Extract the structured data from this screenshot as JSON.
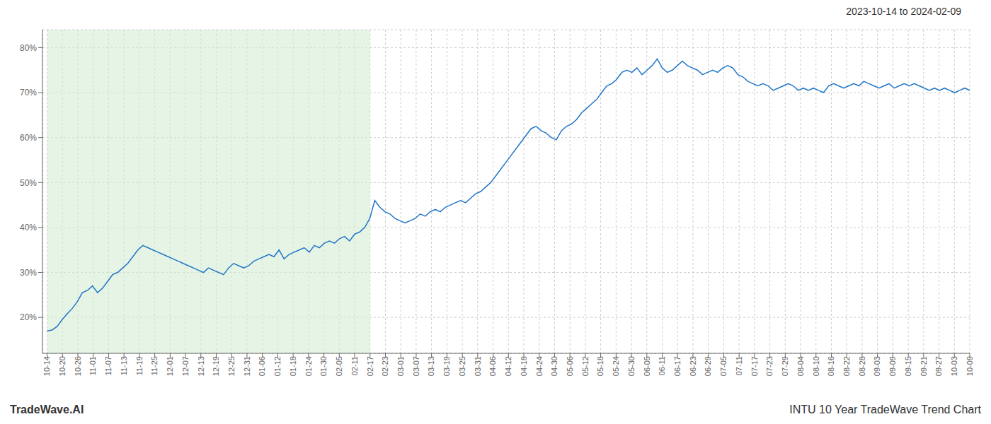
{
  "chart_data": {
    "type": "line",
    "title": "2023-10-14 to 2024-02-09",
    "annotations": [
      "TradeWave.AI",
      "INTU 10 Year TradeWave Trend Chart"
    ],
    "color": "#2176c7",
    "grid": true,
    "x": [
      0,
      1,
      2,
      3,
      4,
      5,
      6,
      7,
      8,
      9,
      10,
      11,
      12,
      13,
      14,
      15,
      16,
      17,
      18,
      19,
      20,
      21,
      22,
      23,
      24,
      25,
      26,
      27,
      28,
      29,
      30,
      31,
      32,
      33,
      34,
      35,
      36,
      37,
      38,
      39,
      40,
      41,
      42,
      43,
      44,
      45,
      46,
      47,
      48,
      49,
      50,
      51,
      52,
      53,
      54,
      55,
      56,
      57,
      58,
      59,
      60,
      61,
      62,
      63,
      64,
      65,
      66,
      67,
      68,
      69,
      70,
      71,
      72,
      73,
      74,
      75,
      76,
      77,
      78,
      79,
      80,
      81,
      82,
      83,
      84,
      85,
      86,
      87,
      88,
      89,
      90,
      91,
      92,
      93,
      94,
      95,
      96,
      97,
      98,
      99,
      100,
      101,
      102,
      103,
      104,
      105,
      106,
      107,
      108,
      109,
      110,
      111,
      112,
      113,
      114,
      115,
      116,
      117,
      118,
      119,
      120,
      121,
      122,
      123,
      124,
      125,
      126,
      127,
      128,
      129,
      130,
      131,
      132,
      133,
      134,
      135,
      136,
      137,
      138,
      139,
      140,
      141,
      142,
      143,
      144,
      145,
      146,
      147,
      148,
      149,
      150,
      151,
      152,
      153,
      154,
      155,
      156,
      157,
      158,
      159,
      160,
      161,
      162,
      163,
      164,
      165,
      166,
      167,
      168,
      169,
      170,
      171,
      172,
      173,
      174,
      175,
      176,
      177,
      178,
      179,
      180,
      181,
      182,
      183
    ],
    "values": [
      17.0,
      17.2,
      18.0,
      19.5,
      20.8,
      22.0,
      23.5,
      25.5,
      26.0,
      27.0,
      25.5,
      26.5,
      28.0,
      29.5,
      30.0,
      31.0,
      32.0,
      33.5,
      35.0,
      36.0,
      35.5,
      35.0,
      34.5,
      34.0,
      33.5,
      33.0,
      32.5,
      32.0,
      31.5,
      31.0,
      30.5,
      30.0,
      31.0,
      30.5,
      30.0,
      29.5,
      31.0,
      32.0,
      31.5,
      31.0,
      31.5,
      32.5,
      33.0,
      33.5,
      34.0,
      33.5,
      35.0,
      33.0,
      34.0,
      34.5,
      35.0,
      35.5,
      34.5,
      36.0,
      35.5,
      36.5,
      37.0,
      36.5,
      37.5,
      38.0,
      37.0,
      38.5,
      39.0,
      40.0,
      42.0,
      46.0,
      44.5,
      43.5,
      43.0,
      42.0,
      41.5,
      41.0,
      41.5,
      42.0,
      43.0,
      42.5,
      43.5,
      44.0,
      43.5,
      44.5,
      45.0,
      45.5,
      46.0,
      45.5,
      46.5,
      47.5,
      48.0,
      49.0,
      50.0,
      51.5,
      53.0,
      54.5,
      56.0,
      57.5,
      59.0,
      60.5,
      62.0,
      62.5,
      61.5,
      61.0,
      60.0,
      59.5,
      61.5,
      62.5,
      63.0,
      64.0,
      65.5,
      66.5,
      67.5,
      68.5,
      70.0,
      71.5,
      72.0,
      73.0,
      74.5,
      75.0,
      74.5,
      75.5,
      74.0,
      75.0,
      76.0,
      77.5,
      75.5,
      74.5,
      75.0,
      76.0,
      77.0,
      76.0,
      75.5,
      75.0,
      74.0,
      74.5,
      75.0,
      74.5,
      75.5,
      76.0,
      75.5,
      74.0,
      73.5,
      72.5,
      72.0,
      71.5,
      72.0,
      71.5,
      70.5,
      71.0,
      71.5,
      72.0,
      71.5,
      70.5,
      71.0,
      70.5,
      71.0,
      70.5,
      70.0,
      71.5,
      72.0,
      71.5,
      71.0,
      71.5,
      72.0,
      71.5,
      72.5,
      72.0,
      71.5,
      71.0,
      71.5,
      72.0,
      71.0,
      71.5,
      72.0,
      71.5,
      72.0,
      71.5,
      71.0,
      70.5,
      71.0,
      70.5,
      71.0,
      70.5,
      70.0,
      70.5,
      71.0,
      70.5
    ],
    "xlim": [
      -0.915,
      183
    ],
    "xticks": [
      {
        "value": 0,
        "label": "10-14"
      },
      {
        "value": 3.05,
        "label": "10-20"
      },
      {
        "value": 6.1,
        "label": "10-26"
      },
      {
        "value": 9.15,
        "label": "11-01"
      },
      {
        "value": 12.2,
        "label": "11-07"
      },
      {
        "value": 15.25,
        "label": "11-13"
      },
      {
        "value": 18.3,
        "label": "11-19"
      },
      {
        "value": 21.35,
        "label": "11-25"
      },
      {
        "value": 24.4,
        "label": "12-01"
      },
      {
        "value": 27.45,
        "label": "12-07"
      },
      {
        "value": 30.5,
        "label": "12-13"
      },
      {
        "value": 33.55,
        "label": "12-19"
      },
      {
        "value": 36.6,
        "label": "12-25"
      },
      {
        "value": 39.65,
        "label": "12-31"
      },
      {
        "value": 42.7,
        "label": "01-06"
      },
      {
        "value": 45.75,
        "label": "01-12"
      },
      {
        "value": 48.8,
        "label": "01-18"
      },
      {
        "value": 51.85,
        "label": "01-24"
      },
      {
        "value": 54.9,
        "label": "01-30"
      },
      {
        "value": 57.95,
        "label": "02-05"
      },
      {
        "value": 61,
        "label": "02-11"
      },
      {
        "value": 64.05,
        "label": "02-17"
      },
      {
        "value": 67.1,
        "label": "02-23"
      },
      {
        "value": 70.15,
        "label": "03-01"
      },
      {
        "value": 73.2,
        "label": "03-07"
      },
      {
        "value": 76.25,
        "label": "03-13"
      },
      {
        "value": 79.3,
        "label": "03-19"
      },
      {
        "value": 82.35,
        "label": "03-25"
      },
      {
        "value": 85.4,
        "label": "03-31"
      },
      {
        "value": 88.45,
        "label": "04-06"
      },
      {
        "value": 91.5,
        "label": "04-12"
      },
      {
        "value": 94.55,
        "label": "04-18"
      },
      {
        "value": 97.6,
        "label": "04-24"
      },
      {
        "value": 100.65,
        "label": "04-30"
      },
      {
        "value": 103.7,
        "label": "05-06"
      },
      {
        "value": 106.75,
        "label": "05-12"
      },
      {
        "value": 109.8,
        "label": "05-18"
      },
      {
        "value": 112.85,
        "label": "05-24"
      },
      {
        "value": 115.9,
        "label": "05-30"
      },
      {
        "value": 118.95,
        "label": "06-05"
      },
      {
        "value": 122,
        "label": "06-11"
      },
      {
        "value": 125.05,
        "label": "06-17"
      },
      {
        "value": 128.1,
        "label": "06-23"
      },
      {
        "value": 131.15,
        "label": "06-29"
      },
      {
        "value": 134.2,
        "label": "07-05"
      },
      {
        "value": 137.25,
        "label": "07-11"
      },
      {
        "value": 140.3,
        "label": "07-17"
      },
      {
        "value": 143.35,
        "label": "07-23"
      },
      {
        "value": 146.4,
        "label": "07-29"
      },
      {
        "value": 149.45,
        "label": "08-04"
      },
      {
        "value": 152.5,
        "label": "08-10"
      },
      {
        "value": 155.55,
        "label": "08-16"
      },
      {
        "value": 158.6,
        "label": "08-22"
      },
      {
        "value": 161.65,
        "label": "08-28"
      },
      {
        "value": 164.7,
        "label": "09-03"
      },
      {
        "value": 167.75,
        "label": "09-09"
      },
      {
        "value": 170.8,
        "label": "09-15"
      },
      {
        "value": 173.85,
        "label": "09-21"
      },
      {
        "value": 176.9,
        "label": "09-27"
      },
      {
        "value": 179.95,
        "label": "10-03"
      },
      {
        "value": 183,
        "label": "10-09"
      }
    ],
    "ylim": [
      12,
      84
    ],
    "yticks": [
      {
        "value": 20,
        "label": "20%"
      },
      {
        "value": 30,
        "label": "30%"
      },
      {
        "value": 40,
        "label": "40%"
      },
      {
        "value": 50,
        "label": "50%"
      },
      {
        "value": 60,
        "label": "60%"
      },
      {
        "value": 70,
        "label": "70%"
      },
      {
        "value": 80,
        "label": "80%"
      }
    ],
    "spans": [
      {
        "x0": 0,
        "x1": 64.05,
        "color": "#d4ecd4"
      }
    ]
  }
}
